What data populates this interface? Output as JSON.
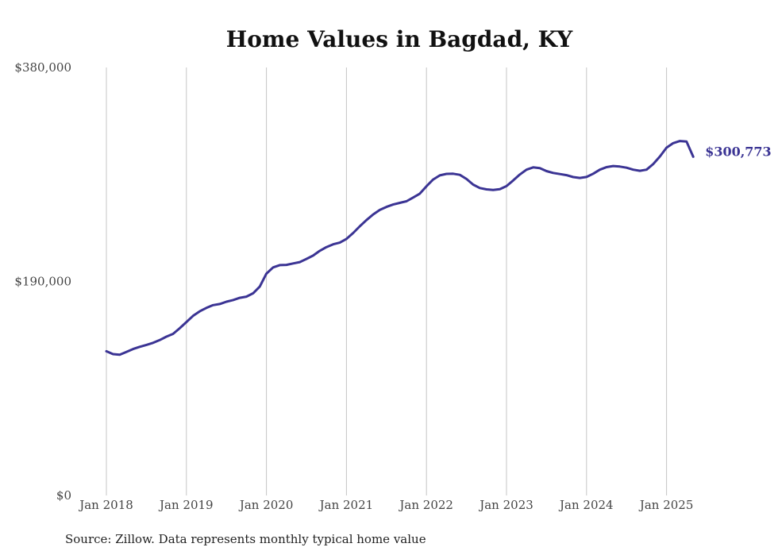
{
  "chart_data": {
    "type": "line",
    "title": "Home Values in Bagdad, KY",
    "xlabel": "",
    "ylabel": "",
    "source": "Source: Zillow. Data represents monthly typical home value",
    "ylim": [
      0,
      380000
    ],
    "y_ticks": [
      {
        "value": 0,
        "label": "$0"
      },
      {
        "value": 190000,
        "label": "$190,000"
      },
      {
        "value": 380000,
        "label": "$380,000"
      }
    ],
    "x_ticks": [
      {
        "value": "2018-01",
        "label": "Jan 2018"
      },
      {
        "value": "2019-01",
        "label": "Jan 2019"
      },
      {
        "value": "2020-01",
        "label": "Jan 2020"
      },
      {
        "value": "2021-01",
        "label": "Jan 2021"
      },
      {
        "value": "2022-01",
        "label": "Jan 2022"
      },
      {
        "value": "2023-01",
        "label": "Jan 2023"
      },
      {
        "value": "2024-01",
        "label": "Jan 2024"
      },
      {
        "value": "2025-01",
        "label": "Jan 2025"
      }
    ],
    "grid": {
      "vertical": true,
      "horizontal": false
    },
    "color": "#3b3494",
    "end_label": "$300,773",
    "series": [
      {
        "points": [
          [
            "2018-01",
            128000
          ],
          [
            "2018-02",
            125500
          ],
          [
            "2018-03",
            125000
          ],
          [
            "2018-04",
            127500
          ],
          [
            "2018-05",
            130000
          ],
          [
            "2018-06",
            132000
          ],
          [
            "2018-07",
            133700
          ],
          [
            "2018-08",
            135500
          ],
          [
            "2018-09",
            138000
          ],
          [
            "2018-10",
            141000
          ],
          [
            "2018-11",
            143500
          ],
          [
            "2018-12",
            148500
          ],
          [
            "2019-01",
            154000
          ],
          [
            "2019-02",
            159500
          ],
          [
            "2019-03",
            163500
          ],
          [
            "2019-04",
            166500
          ],
          [
            "2019-05",
            169000
          ],
          [
            "2019-06",
            170000
          ],
          [
            "2019-07",
            172000
          ],
          [
            "2019-08",
            173500
          ],
          [
            "2019-09",
            175500
          ],
          [
            "2019-10",
            176500
          ],
          [
            "2019-11",
            179500
          ],
          [
            "2019-12",
            185500
          ],
          [
            "2020-01",
            197000
          ],
          [
            "2020-02",
            202500
          ],
          [
            "2020-03",
            204500
          ],
          [
            "2020-04",
            204700
          ],
          [
            "2020-05",
            206000
          ],
          [
            "2020-06",
            207200
          ],
          [
            "2020-07",
            210000
          ],
          [
            "2020-08",
            213000
          ],
          [
            "2020-09",
            217200
          ],
          [
            "2020-10",
            220500
          ],
          [
            "2020-11",
            223000
          ],
          [
            "2020-12",
            224500
          ],
          [
            "2021-01",
            227800
          ],
          [
            "2021-02",
            233000
          ],
          [
            "2021-03",
            239000
          ],
          [
            "2021-04",
            244500
          ],
          [
            "2021-05",
            249500
          ],
          [
            "2021-06",
            253500
          ],
          [
            "2021-07",
            256200
          ],
          [
            "2021-08",
            258300
          ],
          [
            "2021-09",
            259800
          ],
          [
            "2021-10",
            261200
          ],
          [
            "2021-11",
            264500
          ],
          [
            "2021-12",
            268000
          ],
          [
            "2022-01",
            274500
          ],
          [
            "2022-02",
            280500
          ],
          [
            "2022-03",
            284200
          ],
          [
            "2022-04",
            285500
          ],
          [
            "2022-05",
            285700
          ],
          [
            "2022-06",
            284700
          ],
          [
            "2022-07",
            281000
          ],
          [
            "2022-08",
            276000
          ],
          [
            "2022-09",
            273000
          ],
          [
            "2022-10",
            271800
          ],
          [
            "2022-11",
            271300
          ],
          [
            "2022-12",
            272000
          ],
          [
            "2023-01",
            274700
          ],
          [
            "2023-02",
            279700
          ],
          [
            "2023-03",
            285000
          ],
          [
            "2023-04",
            289300
          ],
          [
            "2023-05",
            291300
          ],
          [
            "2023-06",
            290700
          ],
          [
            "2023-07",
            288000
          ],
          [
            "2023-08",
            286400
          ],
          [
            "2023-09",
            285400
          ],
          [
            "2023-10",
            284400
          ],
          [
            "2023-11",
            282700
          ],
          [
            "2023-12",
            281900
          ],
          [
            "2024-01",
            282800
          ],
          [
            "2024-02",
            285700
          ],
          [
            "2024-03",
            289300
          ],
          [
            "2024-04",
            291500
          ],
          [
            "2024-05",
            292500
          ],
          [
            "2024-06",
            292000
          ],
          [
            "2024-07",
            291000
          ],
          [
            "2024-08",
            289300
          ],
          [
            "2024-09",
            288300
          ],
          [
            "2024-10",
            289300
          ],
          [
            "2024-11",
            294300
          ],
          [
            "2024-12",
            301000
          ],
          [
            "2025-01",
            308800
          ],
          [
            "2025-02",
            312800
          ],
          [
            "2025-03",
            314700
          ],
          [
            "2025-04",
            314200
          ],
          [
            "2025-05",
            300773
          ]
        ]
      }
    ]
  }
}
